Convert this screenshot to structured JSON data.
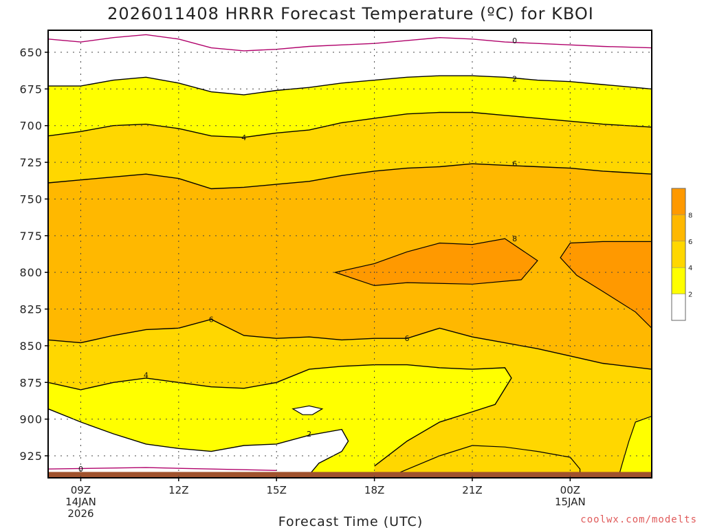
{
  "chart_data": {
    "type": "contour",
    "title": "2026011408 HRRR Forecast Temperature (ºC) for KBOI",
    "xlabel": "Forecast Time (UTC)",
    "ylabel": "",
    "x_ticks": [
      "09Z",
      "12Z",
      "15Z",
      "18Z",
      "21Z",
      "00Z"
    ],
    "x_date_labels": [
      {
        "tick": "09Z",
        "lines": [
          "14JAN",
          "2026"
        ]
      },
      {
        "tick": "00Z",
        "lines": [
          "15JAN"
        ]
      }
    ],
    "xlim_hours_from_09Z": [
      -1,
      17.5
    ],
    "y_ticks": [
      650,
      675,
      700,
      725,
      750,
      775,
      800,
      825,
      850,
      875,
      900,
      925
    ],
    "ylim": [
      635,
      940
    ],
    "y_inverted": true,
    "grid": "dotted",
    "contour_interval": 2,
    "fill_levels": [
      {
        "range": "<2",
        "color": "#ffffff"
      },
      {
        "range": "2-4",
        "color": "#ffff00"
      },
      {
        "range": "4-6",
        "color": "#ffd700"
      },
      {
        "range": "6-8",
        "color": "#ffb800"
      },
      {
        "range": ">8",
        "color": "#ff9900"
      }
    ],
    "colorbar_ticks": [
      "2",
      "4",
      "6",
      "8"
    ],
    "contours": [
      {
        "level": 0,
        "color": "#b0006a",
        "points": [
          [
            -1,
            641
          ],
          [
            0,
            643
          ],
          [
            1,
            640
          ],
          [
            2,
            638
          ],
          [
            3,
            641
          ],
          [
            4,
            647
          ],
          [
            5,
            649
          ],
          [
            6,
            648
          ],
          [
            7,
            646
          ],
          [
            8,
            645
          ],
          [
            9,
            644
          ],
          [
            10,
            642
          ],
          [
            11,
            640
          ],
          [
            12,
            641
          ],
          [
            13,
            643
          ],
          [
            14,
            644
          ],
          [
            15,
            645
          ],
          [
            16,
            646
          ],
          [
            17.5,
            647
          ]
        ]
      },
      {
        "level": 2,
        "color": "#000000",
        "points": [
          [
            -1,
            673
          ],
          [
            0,
            673
          ],
          [
            1,
            669
          ],
          [
            2,
            667
          ],
          [
            3,
            671
          ],
          [
            4,
            677
          ],
          [
            5,
            679
          ],
          [
            6,
            676
          ],
          [
            7,
            674
          ],
          [
            8,
            671
          ],
          [
            9,
            669
          ],
          [
            10,
            667
          ],
          [
            11,
            666
          ],
          [
            12,
            666
          ],
          [
            13,
            667
          ],
          [
            14,
            669
          ],
          [
            15,
            670
          ],
          [
            16,
            672
          ],
          [
            17.5,
            675
          ]
        ]
      },
      {
        "level": 4,
        "color": "#000000",
        "points": [
          [
            -1,
            707
          ],
          [
            0,
            704
          ],
          [
            1,
            700
          ],
          [
            2,
            699
          ],
          [
            3,
            702
          ],
          [
            4,
            707
          ],
          [
            5,
            708
          ],
          [
            6,
            705
          ],
          [
            7,
            703
          ],
          [
            8,
            698
          ],
          [
            9,
            695
          ],
          [
            10,
            692
          ],
          [
            11,
            691
          ],
          [
            12,
            691
          ],
          [
            13,
            693
          ],
          [
            14,
            695
          ],
          [
            15,
            697
          ],
          [
            16,
            699
          ],
          [
            17.5,
            701
          ]
        ]
      },
      {
        "level": 6,
        "color": "#000000",
        "points": [
          [
            -1,
            739
          ],
          [
            0,
            737
          ],
          [
            1,
            735
          ],
          [
            2,
            733
          ],
          [
            3,
            736
          ],
          [
            4,
            743
          ],
          [
            5,
            742
          ],
          [
            6,
            740
          ],
          [
            7,
            738
          ],
          [
            8,
            734
          ],
          [
            9,
            731
          ],
          [
            10,
            729
          ],
          [
            11,
            728
          ],
          [
            12,
            726
          ],
          [
            13,
            727
          ],
          [
            14,
            728
          ],
          [
            15,
            729
          ],
          [
            16,
            731
          ],
          [
            17.5,
            733
          ]
        ]
      }
    ],
    "warm_cores_above_8": [
      {
        "points": [
          [
            7.8,
            800
          ],
          [
            9,
            794
          ],
          [
            10,
            786
          ],
          [
            11,
            780
          ],
          [
            12,
            781
          ],
          [
            13,
            777
          ],
          [
            14,
            792
          ],
          [
            13.5,
            805
          ],
          [
            12,
            808
          ],
          [
            10,
            807
          ],
          [
            9,
            809
          ],
          [
            7.8,
            800
          ]
        ]
      },
      {
        "points": [
          [
            17.5,
            779
          ],
          [
            16,
            779
          ],
          [
            15,
            780
          ],
          [
            14.7,
            790
          ],
          [
            15.2,
            802
          ],
          [
            16,
            813
          ],
          [
            17,
            827
          ],
          [
            17.5,
            838
          ]
        ]
      }
    ],
    "lower_contours": [
      {
        "level": 6,
        "points": [
          [
            -1,
            846
          ],
          [
            0,
            848
          ],
          [
            1,
            843
          ],
          [
            2,
            839
          ],
          [
            3,
            838
          ],
          [
            4,
            832
          ],
          [
            5,
            843
          ],
          [
            6,
            845
          ],
          [
            7,
            844
          ],
          [
            8,
            846
          ],
          [
            9,
            845
          ],
          [
            10,
            845
          ],
          [
            11,
            838
          ],
          [
            12,
            844
          ],
          [
            13,
            848
          ],
          [
            14,
            852
          ],
          [
            15,
            857
          ],
          [
            16,
            862
          ],
          [
            17.5,
            866
          ]
        ]
      },
      {
        "level": 4,
        "points": [
          [
            -1,
            875
          ],
          [
            0,
            880
          ],
          [
            1,
            875
          ],
          [
            2,
            872
          ],
          [
            3,
            875
          ],
          [
            4,
            878
          ],
          [
            5,
            879
          ],
          [
            6,
            875
          ],
          [
            7,
            866
          ],
          [
            8,
            864
          ],
          [
            9,
            863
          ],
          [
            10,
            863
          ],
          [
            11,
            865
          ],
          [
            12,
            866
          ],
          [
            13,
            865
          ],
          [
            13.2,
            872
          ],
          [
            12.7,
            890
          ],
          [
            12,
            895
          ],
          [
            11,
            902
          ],
          [
            10,
            915
          ],
          [
            9,
            932
          ]
        ]
      },
      {
        "level": 2,
        "points": [
          [
            -1,
            893
          ],
          [
            0,
            902
          ],
          [
            1,
            910
          ],
          [
            2,
            917
          ],
          [
            3,
            920
          ],
          [
            4,
            922
          ],
          [
            5,
            918
          ],
          [
            6,
            917
          ],
          [
            7,
            911
          ],
          [
            8,
            907
          ],
          [
            8.2,
            915
          ],
          [
            8.0,
            922
          ],
          [
            7.3,
            930
          ],
          [
            7.0,
            938
          ]
        ]
      }
    ],
    "contour_labels": [
      {
        "text": "0",
        "x": 13.3,
        "y": 642
      },
      {
        "text": "2",
        "x": 13.3,
        "y": 668
      },
      {
        "text": "4",
        "x": 5.0,
        "y": 708
      },
      {
        "text": "6",
        "x": 13.3,
        "y": 726
      },
      {
        "text": "8",
        "x": 13.3,
        "y": 777
      },
      {
        "text": "6",
        "x": 4.0,
        "y": 832
      },
      {
        "text": "6",
        "x": 10.0,
        "y": 845
      },
      {
        "text": "4",
        "x": 2.0,
        "y": 870
      },
      {
        "text": "2",
        "x": 7.0,
        "y": 910
      },
      {
        "text": "0",
        "x": 0.0,
        "y": 934
      }
    ],
    "terrain_color": "#a0522d"
  },
  "watermark": "coolwx.com/modelts"
}
